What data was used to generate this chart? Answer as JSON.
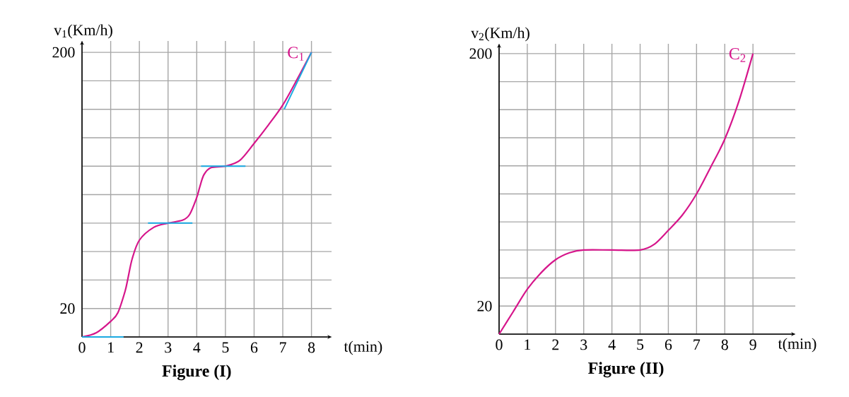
{
  "chart_data": [
    {
      "type": "line",
      "title": "Figure (I)",
      "xlabel": "t(min)",
      "ylabel": "v$_{1}$(Km/h)",
      "grid": true,
      "xlim": [
        0,
        8.7
      ],
      "ylim": [
        0,
        208
      ],
      "xticks": [
        0,
        1,
        2,
        3,
        4,
        5,
        6,
        7,
        8
      ],
      "yticks": [
        {
          "value": 0,
          "label": null
        },
        20,
        {
          "value": 40,
          "label": null
        },
        {
          "value": 60,
          "label": null
        },
        {
          "value": 80,
          "label": null
        },
        {
          "value": 100,
          "label": null
        },
        {
          "value": 120,
          "label": null
        },
        {
          "value": 140,
          "label": null
        },
        {
          "value": 160,
          "label": null
        },
        {
          "value": 180,
          "label": null
        },
        200
      ],
      "series": [
        {
          "color": "#d6168b",
          "x": [
            0,
            0.5,
            1,
            1.25,
            1.5,
            1.6,
            1.75,
            2,
            2.5,
            3,
            3.5,
            3.75,
            4,
            4.1,
            4.25,
            4.5,
            5,
            5.5,
            6,
            6.5,
            7,
            7.5,
            8
          ],
          "values": [
            0,
            3,
            11,
            17,
            32,
            41,
            55,
            68,
            77,
            80,
            82,
            86,
            98,
            105,
            114,
            119,
            120,
            124,
            136,
            149,
            163,
            181,
            200
          ]
        },
        {
          "color": "#1ba9e1",
          "x": [
            0,
            1.45
          ],
          "values": [
            0,
            0
          ]
        },
        {
          "color": "#1ba9e1",
          "x": [
            2.3,
            3,
            3.85
          ],
          "values": [
            80,
            80,
            80
          ]
        },
        {
          "color": "#1ba9e1",
          "x": [
            4.15,
            5,
            5.7
          ],
          "values": [
            120,
            120,
            120
          ]
        },
        {
          "color": "#1ba9e1",
          "x": [
            8,
            7.05
          ],
          "values": [
            200,
            160
          ]
        }
      ],
      "annotations": [
        {
          "text": "C$_{1}$",
          "x": 8,
          "y": 200
        }
      ]
    },
    {
      "type": "line",
      "title": "Figure (II)",
      "xlabel": "t(min)",
      "ylabel": "v$_{2}$(Km/h)",
      "grid": true,
      "xlim": [
        0,
        10.5
      ],
      "ylim": [
        0,
        207
      ],
      "xticks": [
        0,
        1,
        2,
        3,
        4,
        5,
        6,
        7,
        8,
        9
      ],
      "yticks": [
        {
          "value": 0,
          "label": null
        },
        20,
        {
          "value": 40,
          "label": null
        },
        {
          "value": 60,
          "label": null
        },
        {
          "value": 80,
          "label": null
        },
        {
          "value": 100,
          "label": null
        },
        {
          "value": 120,
          "label": null
        },
        {
          "value": 140,
          "label": null
        },
        {
          "value": 160,
          "label": null
        },
        {
          "value": 180,
          "label": null
        },
        200
      ],
      "series": [
        {
          "color": "#d6168b",
          "x": [
            0,
            0.5,
            1,
            1.5,
            2,
            2.5,
            3,
            4,
            5,
            5.5,
            6,
            6.5,
            7,
            7.5,
            8,
            8.5,
            9
          ],
          "values": [
            0,
            16,
            32,
            44,
            53,
            58,
            60,
            60,
            60,
            64,
            74,
            85,
            100,
            119,
            139,
            166,
            200
          ]
        }
      ],
      "annotations": [
        {
          "text": "C$_{2}$",
          "x": 9,
          "y": 200
        }
      ]
    }
  ]
}
